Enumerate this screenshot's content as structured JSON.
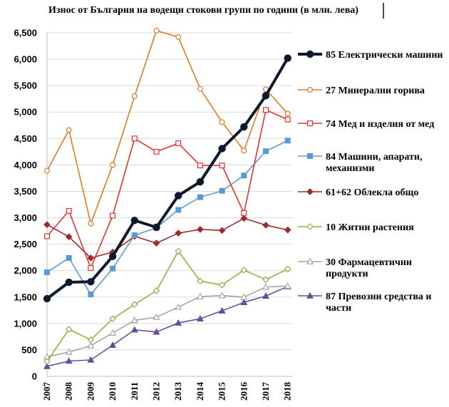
{
  "chart_data": {
    "type": "line",
    "title": "Износ от България на водещи стокови групи  по години (в млн. лева)",
    "ylim": [
      0,
      6500
    ],
    "yticks": [
      "0",
      "500",
      "1,000",
      "1,500",
      "2,000",
      "2,500",
      "3,000",
      "3,500",
      "4,000",
      "4,500",
      "5,000",
      "5,500",
      "6,000",
      "6,500"
    ],
    "ytick_values": [
      0,
      500,
      1000,
      1500,
      2000,
      2500,
      3000,
      3500,
      4000,
      4500,
      5000,
      5500,
      6000,
      6500
    ],
    "x": [
      "2007",
      "2008",
      "2009",
      "2010",
      "2011",
      "2012",
      "2013",
      "2014",
      "2015",
      "2016",
      "2017",
      "2018"
    ],
    "grid": "horizontal",
    "legend_position": "right",
    "series": [
      {
        "name": "85 Електрически  машини",
        "legend_lines": [
          "85 Електрически  машини"
        ],
        "color": "#0d1a2e",
        "marker": "circle-filled",
        "width": 4,
        "values": [
          1470,
          1780,
          1790,
          2270,
          2950,
          2820,
          3420,
          3680,
          4310,
          4720,
          5310,
          6020
        ]
      },
      {
        "name": "27 Минерални  горива",
        "legend_lines": [
          "27 Минерални  горива"
        ],
        "color": "#e07b24",
        "marker": "circle-open",
        "width": 1.6,
        "values": [
          3890,
          4660,
          2890,
          4000,
          5300,
          6540,
          6420,
          5440,
          4810,
          4270,
          5430,
          4970
        ]
      },
      {
        "name": "74 Мед и изделия от мед",
        "legend_lines": [
          "74 Мед и изделия от мед"
        ],
        "color": "#e8312d",
        "marker": "square-open",
        "width": 1.6,
        "values": [
          2650,
          3130,
          2050,
          3040,
          4500,
          4250,
          4410,
          3990,
          3990,
          3090,
          5040,
          4860
        ]
      },
      {
        "name": "84 Машини,  апарати, механизми",
        "legend_lines": [
          "84 Машини,  апарати,",
          "механизми"
        ],
        "color": "#5b9bd5",
        "marker": "square-filled",
        "width": 1.6,
        "values": [
          1970,
          2240,
          1550,
          2040,
          2670,
          2810,
          3150,
          3390,
          3510,
          3800,
          4260,
          4460
        ]
      },
      {
        "name": "61+62  Облекла общо",
        "legend_lines": [
          "61+62  Облекла общо"
        ],
        "color": "#9e2a2b",
        "marker": "diamond-filled",
        "width": 1.6,
        "values": [
          2870,
          2640,
          2240,
          2350,
          2650,
          2520,
          2710,
          2780,
          2760,
          2990,
          2860,
          2770
        ]
      },
      {
        "name": "10 Житни растения",
        "legend_lines": [
          "10 Житни растения"
        ],
        "color": "#8db24a",
        "marker": "diamond-open",
        "width": 1.6,
        "values": [
          280,
          890,
          690,
          1090,
          1360,
          1620,
          2370,
          1800,
          1730,
          2010,
          1830,
          2030
        ]
      },
      {
        "name": "30  Фармацевтични продукти",
        "legend_lines": [
          "30  Фармацевтични",
          "продукти"
        ],
        "color": "#a6a6a6",
        "marker": "triangle-open",
        "width": 1.6,
        "values": [
          370,
          460,
          580,
          820,
          1060,
          1120,
          1310,
          1510,
          1530,
          1500,
          1690,
          1710
        ]
      },
      {
        "name": "87  Превозни  средства и части",
        "legend_lines": [
          "87  Превозни  средства и",
          "части"
        ],
        "color": "#6a4c9c",
        "marker": "triangle-filled",
        "width": 1.6,
        "values": [
          190,
          290,
          310,
          590,
          880,
          840,
          1010,
          1090,
          1240,
          1400,
          1520,
          1700
        ]
      }
    ]
  }
}
